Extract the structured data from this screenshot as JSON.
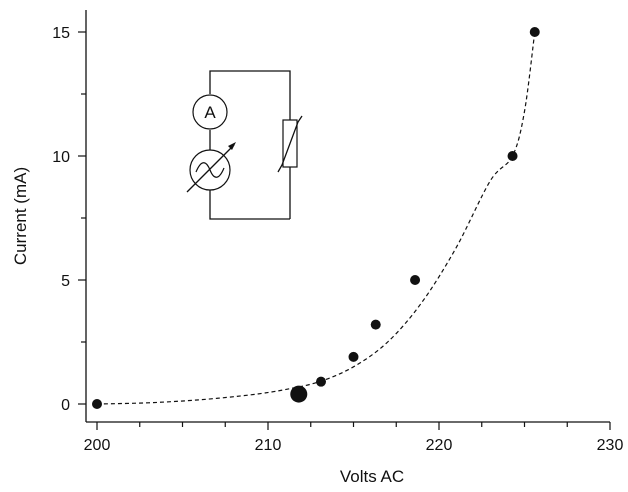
{
  "chart_data": {
    "type": "scatter",
    "xlabel": "Volts AC",
    "ylabel": "Current (mA)",
    "xlim": [
      200,
      230
    ],
    "ylim": [
      0,
      15
    ],
    "x_ticks": [
      200,
      210,
      220,
      230
    ],
    "y_ticks": [
      0,
      5,
      10,
      15
    ],
    "grid": false,
    "series": [
      {
        "points": [
          {
            "x": 200.0,
            "y": 0.0
          },
          {
            "x": 211.8,
            "y": 0.4,
            "marker": "large"
          },
          {
            "x": 213.1,
            "y": 0.9
          },
          {
            "x": 215.0,
            "y": 1.9
          },
          {
            "x": 216.3,
            "y": 3.2
          },
          {
            "x": 218.6,
            "y": 5.0
          },
          {
            "x": 224.3,
            "y": 10.0
          },
          {
            "x": 225.6,
            "y": 15.0
          }
        ]
      }
    ],
    "fit_curve": {
      "style": "dashed",
      "points": [
        [
          200,
          0.0
        ],
        [
          203,
          0.05
        ],
        [
          206,
          0.17
        ],
        [
          209,
          0.37
        ],
        [
          211,
          0.58
        ],
        [
          213,
          0.9
        ],
        [
          215,
          1.5
        ],
        [
          217,
          2.5
        ],
        [
          219,
          4.1
        ],
        [
          221,
          6.3
        ],
        [
          223,
          9.0
        ],
        [
          224.3,
          10.0
        ],
        [
          225,
          11.8
        ],
        [
          225.6,
          15.0
        ]
      ]
    },
    "inset": {
      "ammeter_label": "A"
    }
  }
}
